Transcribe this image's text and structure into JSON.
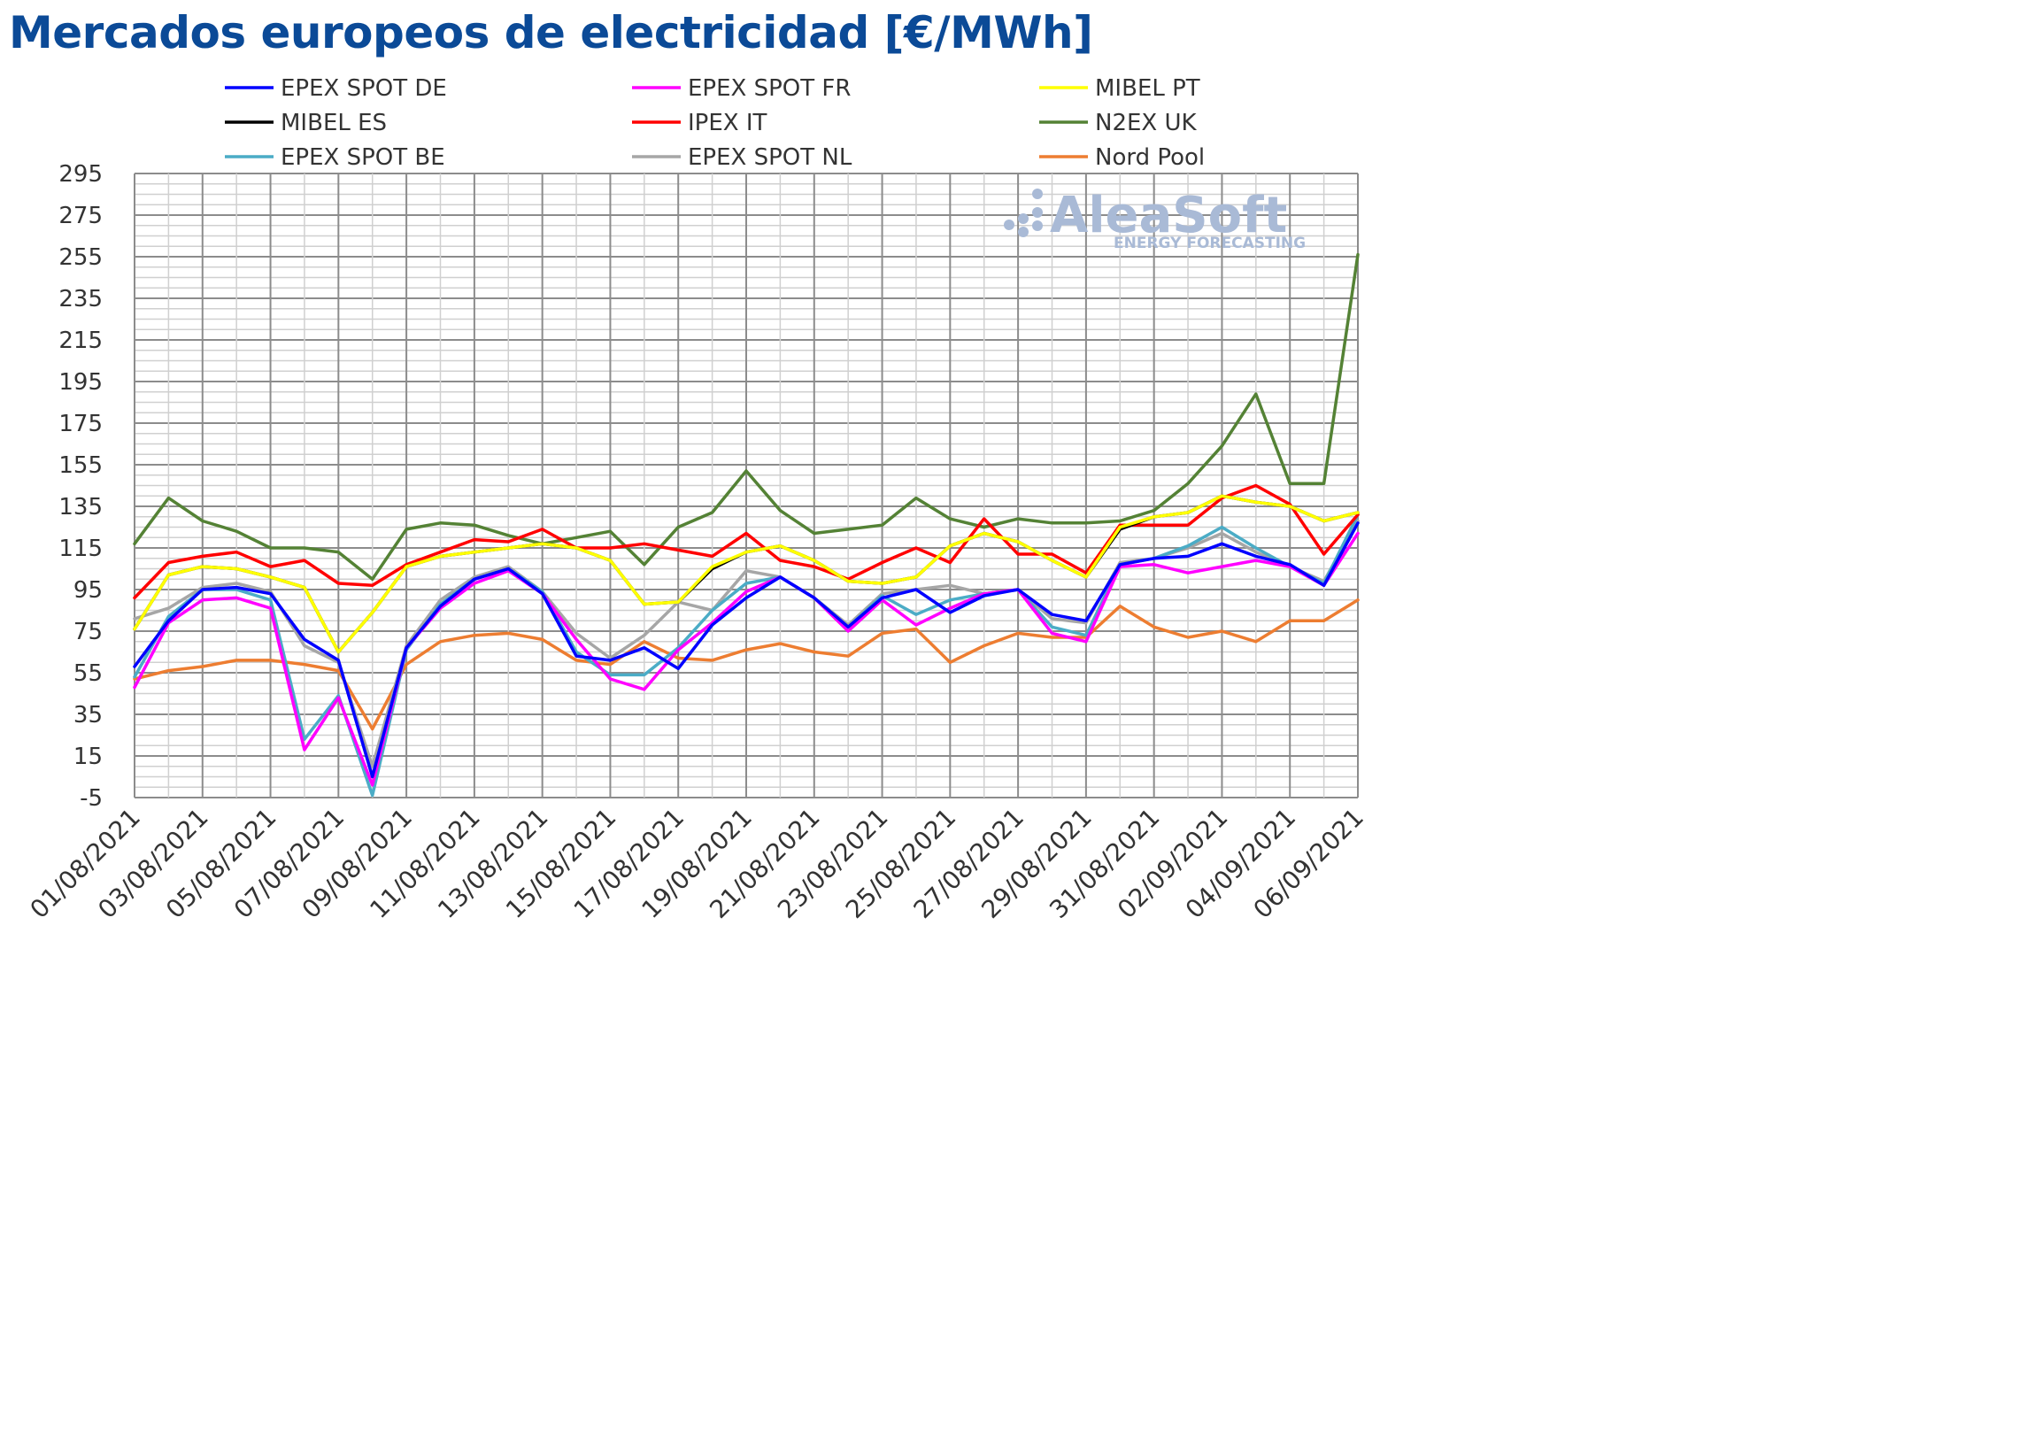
{
  "chart_data": {
    "type": "line",
    "title": "Mercados europeos de electricidad [€/MWh]",
    "xlabel": "",
    "ylabel": "",
    "ylim": [
      -5,
      295
    ],
    "y_ticks": [
      -5,
      15,
      35,
      55,
      75,
      95,
      115,
      135,
      155,
      175,
      195,
      215,
      235,
      255,
      275,
      295
    ],
    "x_tick_labels": [
      "01/08/2021",
      "03/08/2021",
      "05/08/2021",
      "07/08/2021",
      "09/08/2021",
      "11/08/2021",
      "13/08/2021",
      "15/08/2021",
      "17/08/2021",
      "19/08/2021",
      "21/08/2021",
      "23/08/2021",
      "25/08/2021",
      "27/08/2021",
      "29/08/2021",
      "31/08/2021",
      "02/09/2021",
      "04/09/2021",
      "06/09/2021"
    ],
    "x": [
      "01/08/2021",
      "02/08/2021",
      "03/08/2021",
      "04/08/2021",
      "05/08/2021",
      "06/08/2021",
      "07/08/2021",
      "08/08/2021",
      "09/08/2021",
      "10/08/2021",
      "11/08/2021",
      "12/08/2021",
      "13/08/2021",
      "14/08/2021",
      "15/08/2021",
      "16/08/2021",
      "17/08/2021",
      "18/08/2021",
      "19/08/2021",
      "20/08/2021",
      "21/08/2021",
      "22/08/2021",
      "23/08/2021",
      "24/08/2021",
      "25/08/2021",
      "26/08/2021",
      "27/08/2021",
      "28/08/2021",
      "29/08/2021",
      "30/08/2021",
      "31/08/2021",
      "01/09/2021",
      "02/09/2021",
      "03/09/2021",
      "04/09/2021",
      "05/09/2021",
      "06/09/2021"
    ],
    "grid": true,
    "legend_position": "top",
    "series": [
      {
        "name": "EPEX SPOT DE",
        "color": "#0000ff",
        "values": [
          58,
          80,
          95,
          96,
          93,
          71,
          61,
          5,
          67,
          87,
          100,
          105,
          93,
          63,
          61,
          67,
          57,
          78,
          91,
          101,
          91,
          77,
          91,
          95,
          84,
          92,
          95,
          83,
          80,
          107,
          110,
          111,
          117,
          111,
          107,
          97,
          127
        ]
      },
      {
        "name": "EPEX SPOT FR",
        "color": "#ff00ff",
        "values": [
          48,
          79,
          90,
          91,
          86,
          18,
          43,
          1,
          67,
          86,
          98,
          104,
          93,
          71,
          52,
          47,
          66,
          79,
          94,
          101,
          91,
          75,
          90,
          78,
          86,
          93,
          95,
          74,
          70,
          106,
          107,
          103,
          106,
          109,
          106,
          97,
          122
        ]
      },
      {
        "name": "MIBEL PT",
        "color": "#ffff00",
        "values": [
          76,
          102,
          106,
          105,
          101,
          96,
          65,
          84,
          106,
          111,
          113,
          115,
          117,
          115,
          109,
          88,
          89,
          106,
          113,
          116,
          109,
          99,
          98,
          101,
          116,
          122,
          118,
          109,
          101,
          125,
          130,
          132,
          140,
          137,
          135,
          128,
          132
        ]
      },
      {
        "name": "MIBEL ES",
        "color": "#000000",
        "values": [
          76,
          102,
          106,
          105,
          101,
          96,
          65,
          84,
          106,
          111,
          113,
          115,
          117,
          115,
          109,
          88,
          89,
          105,
          113,
          116,
          109,
          99,
          98,
          101,
          116,
          122,
          118,
          109,
          101,
          124,
          130,
          132,
          140,
          137,
          135,
          128,
          132
        ]
      },
      {
        "name": "IPEX IT",
        "color": "#ff0000",
        "values": [
          91,
          108,
          111,
          113,
          106,
          109,
          98,
          97,
          107,
          113,
          119,
          118,
          124,
          115,
          115,
          117,
          114,
          111,
          122,
          109,
          106,
          100,
          108,
          115,
          108,
          129,
          112,
          112,
          103,
          126,
          126,
          126,
          139,
          145,
          136,
          112,
          131
        ]
      },
      {
        "name": "N2EX UK",
        "color": "#548235",
        "values": [
          117,
          139,
          128,
          123,
          115,
          115,
          113,
          100,
          124,
          127,
          126,
          121,
          117,
          120,
          123,
          107,
          125,
          132,
          152,
          133,
          122,
          124,
          126,
          139,
          129,
          125,
          129,
          127,
          127,
          128,
          133,
          146,
          164,
          189,
          146,
          146,
          256
        ]
      },
      {
        "name": "EPEX SPOT BE",
        "color": "#4bacc6",
        "values": [
          53,
          82,
          95,
          95,
          90,
          23,
          44,
          -4,
          66,
          88,
          100,
          105,
          94,
          65,
          54,
          54,
          67,
          85,
          98,
          101,
          91,
          77,
          92,
          83,
          90,
          93,
          95,
          77,
          73,
          107,
          110,
          116,
          125,
          115,
          106,
          98,
          131
        ]
      },
      {
        "name": "EPEX SPOT NL",
        "color": "#a6a6a6",
        "values": [
          81,
          86,
          96,
          98,
          94,
          68,
          60,
          10,
          68,
          90,
          101,
          106,
          94,
          74,
          62,
          73,
          89,
          85,
          104,
          101,
          91,
          78,
          93,
          95,
          97,
          93,
          95,
          81,
          79,
          108,
          110,
          115,
          122,
          113,
          106,
          99,
          128
        ]
      },
      {
        "name": "Nord Pool",
        "color": "#ed7d31",
        "values": [
          52,
          56,
          58,
          61,
          61,
          59,
          56,
          28,
          59,
          70,
          73,
          74,
          71,
          61,
          59,
          70,
          62,
          61,
          66,
          69,
          65,
          63,
          74,
          76,
          60,
          68,
          74,
          72,
          72,
          87,
          77,
          72,
          75,
          70,
          80,
          80,
          90
        ]
      }
    ]
  },
  "watermark": {
    "brand": "AleaSoft",
    "tagline": "ENERGY FORECASTING"
  }
}
